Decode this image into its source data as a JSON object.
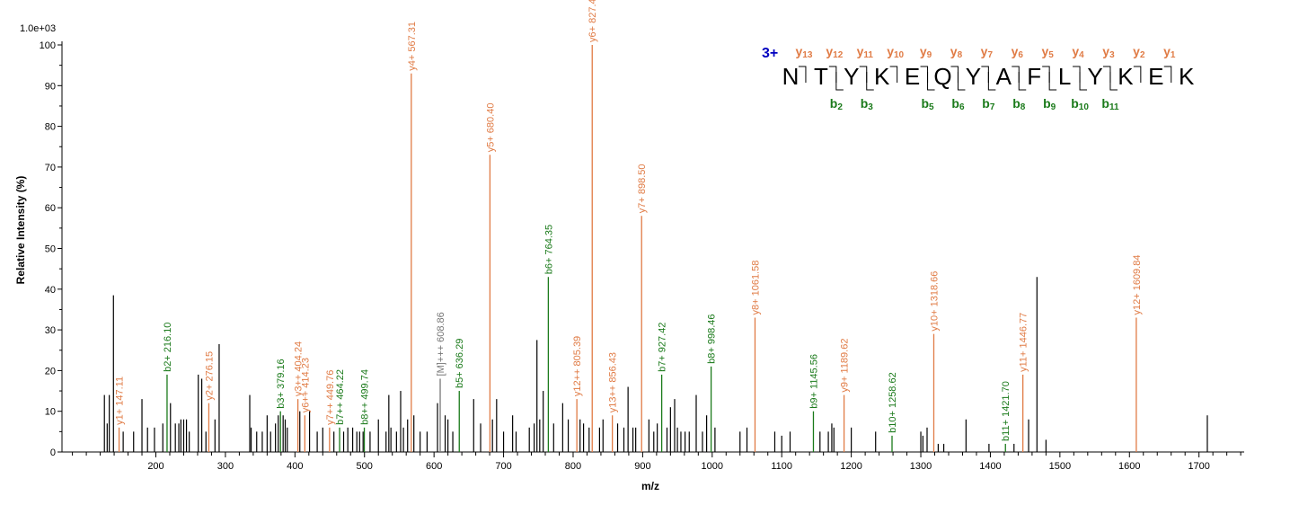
{
  "chart_data": {
    "type": "bar",
    "scale_label": "1.0e+03",
    "ylabel": "Relative   Intensity (%)",
    "xlabel": "m/z",
    "xlim": [
      65,
      1765
    ],
    "ylim": [
      0,
      100
    ],
    "x_ticks": [
      200,
      300,
      400,
      500,
      600,
      700,
      800,
      900,
      1000,
      1100,
      1200,
      1300,
      1400,
      1500,
      1600,
      1700
    ],
    "y_ticks": [
      0,
      10,
      20,
      30,
      40,
      50,
      60,
      70,
      80,
      90,
      100
    ],
    "colors": {
      "y": "#e07b45",
      "b": "#1a7a1a",
      "other": "#000000",
      "precursor": "#777777",
      "charge": "#0000c0"
    },
    "annotated_peaks": [
      {
        "mz": 147.11,
        "intensity": 6,
        "label": "y1+ 147.11",
        "type": "y"
      },
      {
        "mz": 216.1,
        "intensity": 19,
        "label": "b2+ 216.10",
        "type": "b"
      },
      {
        "mz": 276.15,
        "intensity": 12,
        "label": "y2+ 276.15",
        "type": "y"
      },
      {
        "mz": 379.16,
        "intensity": 10,
        "label": "b3+ 379.16",
        "type": "b"
      },
      {
        "mz": 404.24,
        "intensity": 13,
        "label": "y3++ 404.24",
        "type": "y"
      },
      {
        "mz": 414.23,
        "intensity": 9,
        "label": "y6++ 414.23",
        "type": "y"
      },
      {
        "mz": 449.76,
        "intensity": 6,
        "label": "y7++ 449.76",
        "type": "y"
      },
      {
        "mz": 464.22,
        "intensity": 6,
        "label": "b7++ 464.22",
        "type": "b"
      },
      {
        "mz": 499.74,
        "intensity": 6,
        "label": "b8++ 499.74",
        "type": "b"
      },
      {
        "mz": 567.31,
        "intensity": 93,
        "label": "y4+ 567.31",
        "type": "y"
      },
      {
        "mz": 608.86,
        "intensity": 18,
        "label": "[M]+++ 608.86",
        "type": "precursor"
      },
      {
        "mz": 636.29,
        "intensity": 15,
        "label": "b5+ 636.29",
        "type": "b"
      },
      {
        "mz": 680.4,
        "intensity": 73,
        "label": "y5+ 680.40",
        "type": "y"
      },
      {
        "mz": 764.35,
        "intensity": 43,
        "label": "b6+ 764.35",
        "type": "b"
      },
      {
        "mz": 805.39,
        "intensity": 13,
        "label": "y12++ 805.39",
        "type": "y"
      },
      {
        "mz": 827.47,
        "intensity": 100,
        "label": "y6+ 827.47",
        "type": "y"
      },
      {
        "mz": 856.43,
        "intensity": 9,
        "label": "y13++ 856.43",
        "type": "y"
      },
      {
        "mz": 898.5,
        "intensity": 58,
        "label": "y7+ 898.50",
        "type": "y"
      },
      {
        "mz": 927.42,
        "intensity": 19,
        "label": "b7+ 927.42",
        "type": "b"
      },
      {
        "mz": 998.46,
        "intensity": 21,
        "label": "b8+ 998.46",
        "type": "b"
      },
      {
        "mz": 1061.58,
        "intensity": 33,
        "label": "y8+ 1061.58",
        "type": "y"
      },
      {
        "mz": 1145.56,
        "intensity": 10,
        "label": "b9+ 1145.56",
        "type": "b"
      },
      {
        "mz": 1189.62,
        "intensity": 14,
        "label": "y9+ 1189.62",
        "type": "y"
      },
      {
        "mz": 1258.62,
        "intensity": 4,
        "label": "b10+ 1258.62",
        "type": "b"
      },
      {
        "mz": 1318.66,
        "intensity": 29,
        "label": "y10+ 1318.66",
        "type": "y"
      },
      {
        "mz": 1421.7,
        "intensity": 2,
        "label": "b11+ 1421.70",
        "type": "b"
      },
      {
        "mz": 1446.77,
        "intensity": 19,
        "label": "y11+ 1446.77",
        "type": "y"
      },
      {
        "mz": 1609.84,
        "intensity": 33,
        "label": "y12+ 1609.84",
        "type": "y"
      }
    ],
    "other_peaks": [
      [
        126,
        14
      ],
      [
        130,
        7
      ],
      [
        133,
        14
      ],
      [
        139,
        38.5
      ],
      [
        153,
        5
      ],
      [
        168,
        5
      ],
      [
        180,
        13
      ],
      [
        188,
        6
      ],
      [
        198,
        6
      ],
      [
        210,
        7
      ],
      [
        221,
        12
      ],
      [
        228,
        7
      ],
      [
        233,
        7
      ],
      [
        236,
        8
      ],
      [
        240,
        8
      ],
      [
        244,
        8
      ],
      [
        248,
        5
      ],
      [
        261,
        19
      ],
      [
        266,
        18
      ],
      [
        272,
        5
      ],
      [
        285,
        8
      ],
      [
        291,
        26.5
      ],
      [
        335,
        14
      ],
      [
        337,
        6
      ],
      [
        345,
        5
      ],
      [
        353,
        5
      ],
      [
        360,
        9
      ],
      [
        365,
        5
      ],
      [
        372,
        7
      ],
      [
        376,
        9
      ],
      [
        383,
        9
      ],
      [
        386,
        8
      ],
      [
        389,
        6
      ],
      [
        407,
        10
      ],
      [
        421,
        10
      ],
      [
        432,
        5
      ],
      [
        440,
        6
      ],
      [
        456,
        5
      ],
      [
        470,
        5
      ],
      [
        476,
        6
      ],
      [
        483,
        6
      ],
      [
        489,
        5
      ],
      [
        493,
        5
      ],
      [
        498,
        5
      ],
      [
        508,
        5
      ],
      [
        520,
        8
      ],
      [
        531,
        5
      ],
      [
        535,
        14
      ],
      [
        538,
        6
      ],
      [
        546,
        5
      ],
      [
        552,
        15
      ],
      [
        556,
        6
      ],
      [
        562,
        8
      ],
      [
        571,
        9
      ],
      [
        580,
        5
      ],
      [
        590,
        5
      ],
      [
        605,
        12
      ],
      [
        616,
        9
      ],
      [
        620,
        8
      ],
      [
        627,
        5
      ],
      [
        657,
        13
      ],
      [
        667,
        7
      ],
      [
        684,
        8
      ],
      [
        690,
        13
      ],
      [
        700,
        5
      ],
      [
        713,
        9
      ],
      [
        718,
        5
      ],
      [
        737,
        6
      ],
      [
        744,
        7
      ],
      [
        748,
        27.5
      ],
      [
        752,
        8
      ],
      [
        757,
        15
      ],
      [
        772,
        7
      ],
      [
        785,
        12
      ],
      [
        793,
        8
      ],
      [
        810,
        8
      ],
      [
        815,
        7
      ],
      [
        823,
        6
      ],
      [
        838,
        6
      ],
      [
        843,
        8
      ],
      [
        864,
        7
      ],
      [
        873,
        6
      ],
      [
        879,
        16
      ],
      [
        886,
        6
      ],
      [
        890,
        6
      ],
      [
        909,
        8
      ],
      [
        916,
        5
      ],
      [
        921,
        7
      ],
      [
        935,
        6
      ],
      [
        940,
        11
      ],
      [
        946,
        13
      ],
      [
        950,
        6
      ],
      [
        955,
        5
      ],
      [
        961,
        5
      ],
      [
        967,
        5
      ],
      [
        977,
        14
      ],
      [
        986,
        5
      ],
      [
        992,
        9
      ],
      [
        1004,
        6
      ],
      [
        1040,
        5
      ],
      [
        1050,
        6
      ],
      [
        1090,
        5
      ],
      [
        1100,
        4
      ],
      [
        1112,
        5
      ],
      [
        1155,
        5
      ],
      [
        1167,
        5
      ],
      [
        1172,
        7
      ],
      [
        1175,
        6
      ],
      [
        1200,
        6
      ],
      [
        1235,
        5
      ],
      [
        1300,
        5
      ],
      [
        1303,
        4
      ],
      [
        1309,
        6
      ],
      [
        1325,
        2
      ],
      [
        1333,
        2
      ],
      [
        1365,
        8
      ],
      [
        1398,
        2
      ],
      [
        1434,
        2
      ],
      [
        1455,
        8
      ],
      [
        1467,
        43
      ],
      [
        1480,
        3
      ],
      [
        1712,
        9
      ]
    ],
    "peptide": {
      "charge": "3+",
      "sequence": [
        "N",
        "T",
        "Y",
        "K",
        "E",
        "Q",
        "Y",
        "A",
        "F",
        "L",
        "Y",
        "K",
        "E",
        "K"
      ],
      "y_ions": [
        {
          "idx": "13"
        },
        {
          "idx": "12"
        },
        {
          "idx": "11"
        },
        {
          "idx": "10"
        },
        {
          "idx": "9"
        },
        {
          "idx": "8"
        },
        {
          "idx": "7"
        },
        {
          "idx": "6"
        },
        {
          "idx": "5"
        },
        {
          "idx": "4"
        },
        {
          "idx": "3"
        },
        {
          "idx": "2"
        },
        {
          "idx": "1"
        }
      ],
      "b_ions": [
        {
          "idx": "2",
          "bond": 2
        },
        {
          "idx": "3",
          "bond": 3
        },
        {
          "idx": "5",
          "bond": 5
        },
        {
          "idx": "6",
          "bond": 6
        },
        {
          "idx": "7",
          "bond": 7
        },
        {
          "idx": "8",
          "bond": 8
        },
        {
          "idx": "9",
          "bond": 9
        },
        {
          "idx": "10",
          "bond": 10
        },
        {
          "idx": "11",
          "bond": 11
        }
      ]
    }
  }
}
